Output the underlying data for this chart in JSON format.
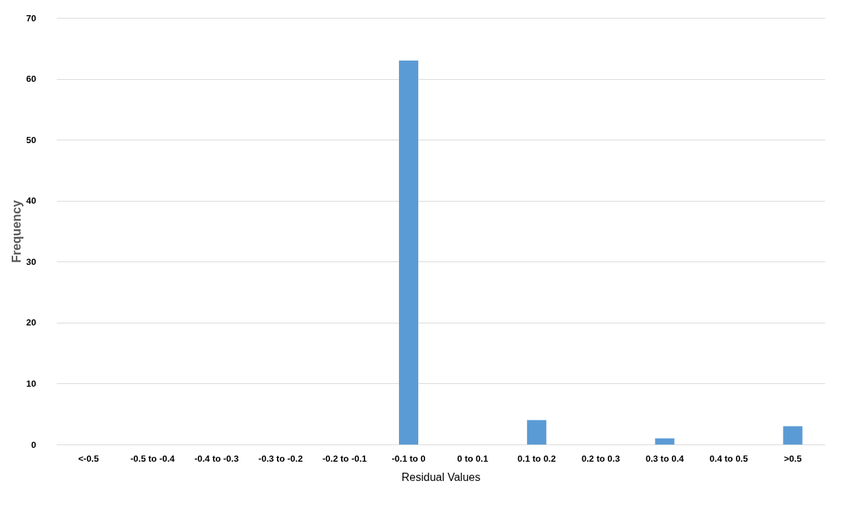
{
  "chart_data": {
    "type": "bar",
    "xlabel": "Residual Values",
    "ylabel": "Frequency",
    "categories": [
      "<-0.5",
      "-0.5 to -0.4",
      "-0.4 to -0.3",
      "-0.3 to -0.2",
      "-0.2 to -0.1",
      "-0.1 to 0",
      "0 to 0.1",
      "0.1 to 0.2",
      "0.2 to 0.3",
      "0.3 to 0.4",
      "0.4 to 0.5",
      ">0.5"
    ],
    "values": [
      0,
      0,
      0,
      0,
      0,
      63,
      0,
      4,
      0,
      1,
      0,
      3
    ],
    "color": "#5b9bd5",
    "ylim": [
      0,
      70
    ],
    "yticks": [
      0,
      10,
      20,
      30,
      40,
      50,
      60,
      70
    ],
    "grid": "y"
  }
}
